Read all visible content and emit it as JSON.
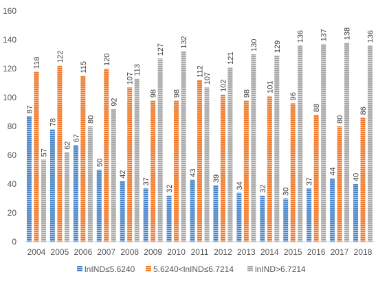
{
  "chart_data": {
    "type": "bar",
    "title": "",
    "xlabel": "",
    "ylabel": "",
    "ylim": [
      0,
      160
    ],
    "yticks": [
      0,
      20,
      40,
      60,
      80,
      100,
      120,
      140,
      160
    ],
    "grid": false,
    "legend_position": "bottom",
    "categories": [
      "2004",
      "2005",
      "2006",
      "2007",
      "2008",
      "2009",
      "2010",
      "2011",
      "2012",
      "2013",
      "2014",
      "2015",
      "2016",
      "2017",
      "2018"
    ],
    "series": [
      {
        "name": "lnIND≤5.6240",
        "color": "#4a86c8",
        "values": [
          87,
          78,
          67,
          50,
          42,
          37,
          32,
          43,
          39,
          34,
          32,
          30,
          37,
          44,
          40
        ]
      },
      {
        "name": "5.6240<lnIND≤6.7214",
        "color": "#f07a2a",
        "values": [
          118,
          122,
          115,
          120,
          107,
          98,
          98,
          112,
          102,
          98,
          101,
          96,
          88,
          80,
          86
        ]
      },
      {
        "name": "lnIND>6.7214",
        "color": "#a8a8a8",
        "values": [
          57,
          62,
          80,
          92,
          113,
          127,
          132,
          107,
          121,
          130,
          129,
          136,
          137,
          138,
          136
        ]
      }
    ]
  }
}
